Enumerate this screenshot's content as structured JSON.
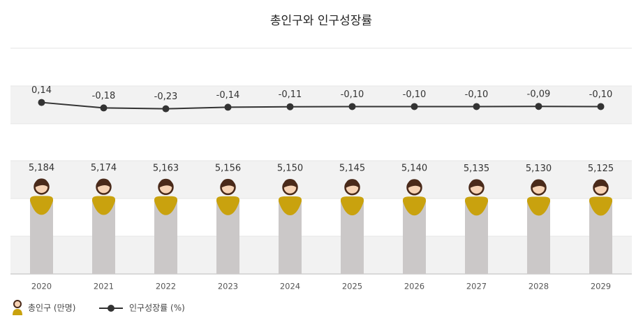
{
  "chart_data": {
    "type": "bar",
    "title": "총인구와 인구성장률",
    "categories": [
      "2020",
      "2021",
      "2022",
      "2023",
      "2024",
      "2025",
      "2026",
      "2027",
      "2028",
      "2029"
    ],
    "series": [
      {
        "name": "총인구 (만명)",
        "type": "bar",
        "color": "#c9a20e",
        "values": [
          5184,
          5174,
          5163,
          5156,
          5150,
          5145,
          5140,
          5135,
          5130,
          5125
        ],
        "value_labels": [
          "5,184",
          "5,174",
          "5,163",
          "5,156",
          "5,150",
          "5,145",
          "5,140",
          "5,135",
          "5,130",
          "5,125"
        ]
      },
      {
        "name": "인구성장률 (%)",
        "type": "line",
        "axis": "y2",
        "color": "#333333",
        "values": [
          0.14,
          -0.18,
          -0.23,
          -0.14,
          -0.11,
          -0.1,
          -0.1,
          -0.1,
          -0.09,
          -0.1
        ],
        "value_labels": [
          "0,14",
          "-0,18",
          "-0,23",
          "-0,14",
          "-0,11",
          "-0,10",
          "-0,10",
          "-0,10",
          "-0,09",
          "-0,10"
        ]
      }
    ],
    "ylim": [
      0,
      5200
    ],
    "y2lim": [
      -1.1,
      1.1
    ],
    "grid": true
  }
}
